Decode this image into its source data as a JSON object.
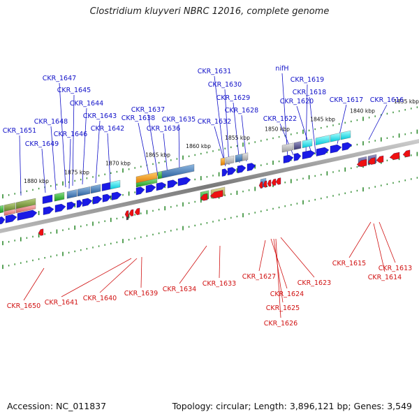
{
  "title": "Clostridium kluyveri NBRC 12016, complete genome",
  "footer": {
    "accession": "Accession: NC_011837",
    "topology": "Topology: circular; Length: 3,896,121 bp; Genes: 3,549"
  },
  "colors": {
    "forward_label": "#1010c8",
    "reverse_label": "#d01010",
    "forward_gene": "#1a1ae6",
    "reverse_gene": "#ee1111",
    "tick": "#2e8b2e",
    "backbone": "#8a8a8a"
  },
  "ruler": [
    {
      "label": "1835 kbp"
    },
    {
      "label": "1840 kbp"
    },
    {
      "label": "1845 kbp"
    },
    {
      "label": "1850 kbp"
    },
    {
      "label": "1855 kbp"
    },
    {
      "label": "1860 kbp"
    },
    {
      "label": "1865 kbp"
    },
    {
      "label": "1870 kbp"
    },
    {
      "label": "1875 kbp"
    },
    {
      "label": "1880 kbp"
    }
  ],
  "forward_genes": [
    "nifH",
    "CKR_1619",
    "CKR_1618",
    "CKR_1620",
    "CKR_1617",
    "CKR_1616",
    "CKR_1622",
    "CKR_1631",
    "CKR_1630",
    "CKR_1629",
    "CKR_1628",
    "CKR_1632",
    "CKR_1637",
    "CKR_1638",
    "CKR_1635",
    "CKR_1636",
    "CKR_1647",
    "CKR_1645",
    "CKR_1644",
    "CKR_1643",
    "CKR_1648",
    "CKR_1646",
    "CKR_1642",
    "CKR_1651",
    "CKR_1649"
  ],
  "reverse_genes": [
    "CKR_1650",
    "CKR_1641",
    "CKR_1640",
    "CKR_1639",
    "CKR_1634",
    "CKR_1633",
    "CKR_1627",
    "CKR_1624",
    "CKR_1625",
    "CKR_1626",
    "CKR_1623",
    "CKR_1615",
    "CKR_1613",
    "CKR_1614"
  ]
}
